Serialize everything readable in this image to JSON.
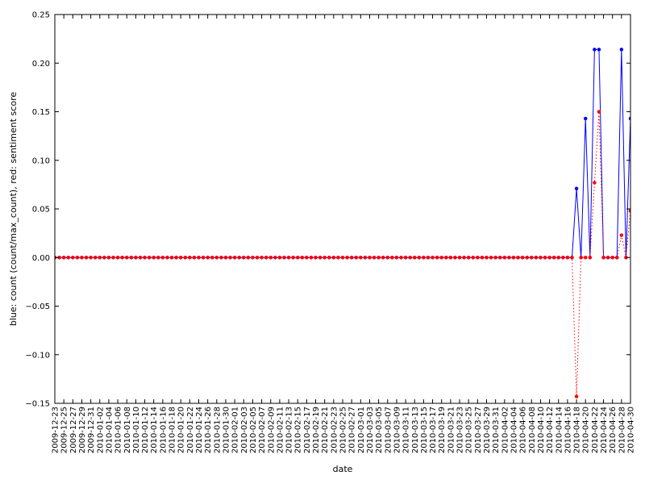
{
  "chart_data": {
    "type": "line",
    "xlabel": "date",
    "ylabel": "blue: count (count/max_count), red: sentiment score",
    "ylim": [
      -0.15,
      0.25
    ],
    "yticks": [
      -0.15,
      -0.1,
      -0.05,
      0.0,
      0.05,
      0.1,
      0.15,
      0.2,
      0.25
    ],
    "ytick_labels": [
      "−0.15",
      "−0.10",
      "−0.05",
      "0.00",
      "0.05",
      "0.10",
      "0.15",
      "0.20",
      "0.25"
    ],
    "x_start": "2009-12-23",
    "x_end": "2010-04-30",
    "xtick_labels": [
      "2009-12-23",
      "2009-12-25",
      "2009-12-27",
      "2009-12-29",
      "2009-12-31",
      "2010-01-02",
      "2010-01-04",
      "2010-01-06",
      "2010-01-08",
      "2010-01-10",
      "2010-01-12",
      "2010-01-14",
      "2010-01-16",
      "2010-01-18",
      "2010-01-20",
      "2010-01-22",
      "2010-01-24",
      "2010-01-26",
      "2010-01-28",
      "2010-01-30",
      "2010-02-01",
      "2010-02-03",
      "2010-02-05",
      "2010-02-07",
      "2010-02-09",
      "2010-02-11",
      "2010-02-13",
      "2010-02-15",
      "2010-02-17",
      "2010-02-19",
      "2010-02-21",
      "2010-02-23",
      "2010-02-25",
      "2010-02-27",
      "2010-03-01",
      "2010-03-03",
      "2010-03-05",
      "2010-03-07",
      "2010-03-09",
      "2010-03-11",
      "2010-03-13",
      "2010-03-15",
      "2010-03-17",
      "2010-03-19",
      "2010-03-21",
      "2010-03-23",
      "2010-03-25",
      "2010-03-27",
      "2010-03-29",
      "2010-03-31",
      "2010-04-02",
      "2010-04-04",
      "2010-04-06",
      "2010-04-08",
      "2010-04-10",
      "2010-04-12",
      "2010-04-14",
      "2010-04-16",
      "2010-04-18",
      "2010-04-20",
      "2010-04-22",
      "2010-04-24",
      "2010-04-26",
      "2010-04-28",
      "2010-04-30"
    ],
    "grid": false,
    "default_value": 0,
    "series": [
      {
        "color": "#0000ff",
        "line_style": "solid",
        "nonzero_points": [
          {
            "date": "2010-04-18",
            "value": 0.071
          },
          {
            "date": "2010-04-20",
            "value": 0.143
          },
          {
            "date": "2010-04-22",
            "value": 0.214
          },
          {
            "date": "2010-04-23",
            "value": 0.214
          },
          {
            "date": "2010-04-28",
            "value": 0.214
          },
          {
            "date": "2010-04-30",
            "value": 0.143
          }
        ]
      },
      {
        "color": "#ff0000",
        "line_style": "dotted",
        "nonzero_points": [
          {
            "date": "2010-04-18",
            "value": -0.143
          },
          {
            "date": "2010-04-22",
            "value": 0.077
          },
          {
            "date": "2010-04-23",
            "value": 0.15
          },
          {
            "date": "2010-04-28",
            "value": 0.023
          },
          {
            "date": "2010-04-30",
            "value": 0.048
          }
        ]
      }
    ]
  }
}
